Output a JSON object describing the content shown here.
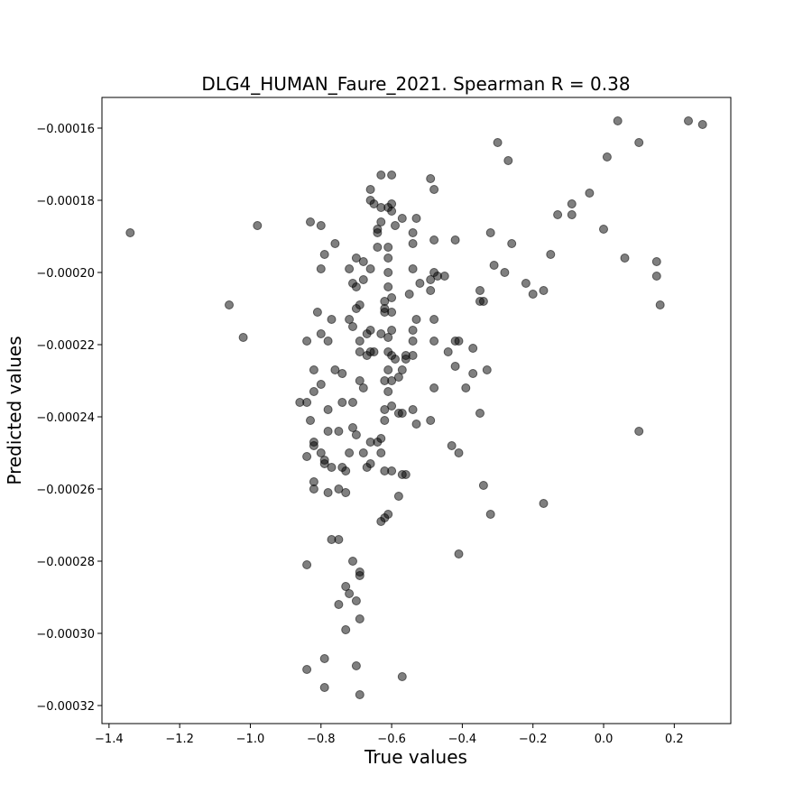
{
  "chart_data": {
    "type": "scatter",
    "title": "DLG4_HUMAN_Faure_2021. Spearman R = 0.38",
    "xlabel": "True values",
    "ylabel": "Predicted values",
    "xlim": [
      -1.42,
      0.36
    ],
    "ylim": [
      -0.000325,
      -0.0001515
    ],
    "xticks": [
      -1.4,
      -1.2,
      -1.0,
      -0.8,
      -0.6,
      -0.4,
      -0.2,
      0.0,
      0.2
    ],
    "xtick_labels": [
      "−1.4",
      "−1.2",
      "−1.0",
      "−0.8",
      "−0.6",
      "−0.4",
      "−0.2",
      "0.0",
      "0.2"
    ],
    "yticks": [
      -0.00016,
      -0.00018,
      -0.0002,
      -0.00022,
      -0.00024,
      -0.00026,
      -0.00028,
      -0.0003,
      -0.00032
    ],
    "ytick_labels": [
      "−0.00016",
      "−0.00018",
      "−0.00020",
      "−0.00022",
      "−0.00024",
      "−0.00026",
      "−0.00028",
      "−0.00030",
      "−0.00032"
    ],
    "grid": false,
    "marker_color": "#000000",
    "marker_alpha": 0.5,
    "points": [
      [
        -1.34,
        -0.000189
      ],
      [
        -1.06,
        -0.000209
      ],
      [
        -1.02,
        -0.000218
      ],
      [
        -0.98,
        -0.000187
      ],
      [
        0.24,
        -0.000158
      ],
      [
        0.28,
        -0.000159
      ],
      [
        0.04,
        -0.000158
      ],
      [
        0.1,
        -0.000164
      ],
      [
        0.01,
        -0.000168
      ],
      [
        -0.3,
        -0.000164
      ],
      [
        -0.27,
        -0.000169
      ],
      [
        -0.04,
        -0.000178
      ],
      [
        -0.09,
        -0.000181
      ],
      [
        -0.13,
        -0.000184
      ],
      [
        -0.09,
        -0.000184
      ],
      [
        -0.0,
        -0.000188
      ],
      [
        -0.15,
        -0.000195
      ],
      [
        -0.26,
        -0.000192
      ],
      [
        -0.32,
        -0.000189
      ],
      [
        -0.31,
        -0.000198
      ],
      [
        -0.28,
        -0.0002
      ],
      [
        -0.22,
        -0.000203
      ],
      [
        -0.2,
        -0.000206
      ],
      [
        -0.17,
        -0.000205
      ],
      [
        0.06,
        -0.000196
      ],
      [
        0.15,
        -0.000197
      ],
      [
        0.15,
        -0.000201
      ],
      [
        0.16,
        -0.000209
      ],
      [
        0.1,
        -0.000244
      ],
      [
        -0.17,
        -0.000264
      ],
      [
        -0.32,
        -0.000267
      ],
      [
        -0.34,
        -0.000259
      ],
      [
        -0.41,
        -0.000278
      ],
      [
        -0.41,
        -0.00025
      ],
      [
        -0.43,
        -0.000248
      ],
      [
        -0.35,
        -0.000239
      ],
      [
        -0.33,
        -0.000227
      ],
      [
        -0.37,
        -0.000228
      ],
      [
        -0.39,
        -0.000232
      ],
      [
        -0.42,
        -0.000226
      ],
      [
        -0.44,
        -0.000222
      ],
      [
        -0.41,
        -0.000219
      ],
      [
        -0.42,
        -0.000219
      ],
      [
        -0.37,
        -0.000221
      ],
      [
        -0.35,
        -0.000208
      ],
      [
        -0.34,
        -0.000208
      ],
      [
        -0.35,
        -0.000205
      ],
      [
        -0.42,
        -0.000191
      ],
      [
        -0.45,
        -0.000201
      ],
      [
        -0.47,
        -0.000201
      ],
      [
        -0.48,
        -0.0002
      ],
      [
        -0.49,
        -0.000202
      ],
      [
        -0.49,
        -0.000205
      ],
      [
        -0.48,
        -0.000191
      ],
      [
        -0.48,
        -0.000177
      ],
      [
        -0.49,
        -0.000174
      ],
      [
        -0.52,
        -0.000203
      ],
      [
        -0.54,
        -0.000199
      ],
      [
        -0.53,
        -0.000185
      ],
      [
        -0.54,
        -0.000189
      ],
      [
        -0.54,
        -0.000192
      ],
      [
        -0.57,
        -0.000185
      ],
      [
        -0.59,
        -0.000187
      ],
      [
        -0.55,
        -0.000206
      ],
      [
        -0.54,
        -0.000216
      ],
      [
        -0.54,
        -0.000219
      ],
      [
        -0.54,
        -0.000223
      ],
      [
        -0.56,
        -0.000223
      ],
      [
        -0.56,
        -0.000224
      ],
      [
        -0.57,
        -0.000227
      ],
      [
        -0.58,
        -0.000229
      ],
      [
        -0.59,
        -0.000224
      ],
      [
        -0.6,
        -0.000223
      ],
      [
        -0.61,
        -0.000222
      ],
      [
        -0.61,
        -0.000227
      ],
      [
        -0.6,
        -0.00023
      ],
      [
        -0.62,
        -0.00023
      ],
      [
        -0.61,
        -0.000233
      ],
      [
        -0.6,
        -0.000237
      ],
      [
        -0.62,
        -0.000238
      ],
      [
        -0.62,
        -0.000241
      ],
      [
        -0.63,
        -0.000246
      ],
      [
        -0.64,
        -0.000247
      ],
      [
        -0.63,
        -0.00025
      ],
      [
        -0.62,
        -0.000255
      ],
      [
        -0.6,
        -0.000255
      ],
      [
        -0.57,
        -0.000256
      ],
      [
        -0.56,
        -0.000256
      ],
      [
        -0.58,
        -0.000262
      ],
      [
        -0.58,
        -0.000239
      ],
      [
        -0.57,
        -0.000239
      ],
      [
        -0.54,
        -0.000238
      ],
      [
        -0.53,
        -0.000242
      ],
      [
        -0.49,
        -0.000241
      ],
      [
        -0.48,
        -0.000232
      ],
      [
        -0.48,
        -0.000213
      ],
      [
        -0.48,
        -0.000219
      ],
      [
        -0.53,
        -0.000213
      ],
      [
        -0.6,
        -0.000211
      ],
      [
        -0.6,
        -0.000207
      ],
      [
        -0.62,
        -0.000208
      ],
      [
        -0.62,
        -0.000211
      ],
      [
        -0.63,
        -0.000217
      ],
      [
        -0.6,
        -0.000216
      ],
      [
        -0.61,
        -0.000218
      ],
      [
        -0.62,
        -0.00021
      ],
      [
        -0.61,
        -0.000204
      ],
      [
        -0.61,
        -0.0002
      ],
      [
        -0.61,
        -0.000196
      ],
      [
        -0.61,
        -0.000193
      ],
      [
        -0.63,
        -0.000186
      ],
      [
        -0.64,
        -0.000188
      ],
      [
        -0.64,
        -0.000189
      ],
      [
        -0.64,
        -0.000193
      ],
      [
        -0.61,
        -0.000182
      ],
      [
        -0.6,
        -0.000183
      ],
      [
        -0.63,
        -0.000182
      ],
      [
        -0.65,
        -0.000181
      ],
      [
        -0.66,
        -0.00018
      ],
      [
        -0.66,
        -0.000177
      ],
      [
        -0.63,
        -0.000173
      ],
      [
        -0.6,
        -0.000173
      ],
      [
        -0.6,
        -0.000181
      ],
      [
        -0.66,
        -0.000199
      ],
      [
        -0.68,
        -0.000197
      ],
      [
        -0.7,
        -0.000196
      ],
      [
        -0.68,
        -0.000202
      ],
      [
        -0.7,
        -0.000204
      ],
      [
        -0.72,
        -0.000199
      ],
      [
        -0.71,
        -0.000203
      ],
      [
        -0.69,
        -0.000209
      ],
      [
        -0.7,
        -0.00021
      ],
      [
        -0.66,
        -0.000216
      ],
      [
        -0.67,
        -0.000217
      ],
      [
        -0.65,
        -0.000222
      ],
      [
        -0.66,
        -0.000222
      ],
      [
        -0.67,
        -0.000223
      ],
      [
        -0.69,
        -0.000222
      ],
      [
        -0.69,
        -0.000219
      ],
      [
        -0.71,
        -0.000215
      ],
      [
        -0.72,
        -0.000213
      ],
      [
        -0.77,
        -0.000213
      ],
      [
        -0.81,
        -0.000211
      ],
      [
        -0.8,
        -0.000217
      ],
      [
        -0.78,
        -0.000219
      ],
      [
        -0.84,
        -0.000219
      ],
      [
        -0.76,
        -0.000227
      ],
      [
        -0.82,
        -0.000227
      ],
      [
        -0.74,
        -0.000228
      ],
      [
        -0.8,
        -0.000231
      ],
      [
        -0.82,
        -0.000233
      ],
      [
        -0.69,
        -0.00023
      ],
      [
        -0.68,
        -0.000232
      ],
      [
        -0.71,
        -0.000236
      ],
      [
        -0.74,
        -0.000236
      ],
      [
        -0.78,
        -0.000238
      ],
      [
        -0.84,
        -0.000236
      ],
      [
        -0.86,
        -0.000236
      ],
      [
        -0.83,
        -0.000241
      ],
      [
        -0.78,
        -0.000244
      ],
      [
        -0.75,
        -0.000244
      ],
      [
        -0.71,
        -0.000243
      ],
      [
        -0.7,
        -0.000245
      ],
      [
        -0.66,
        -0.000247
      ],
      [
        -0.68,
        -0.00025
      ],
      [
        -0.72,
        -0.00025
      ],
      [
        -0.79,
        -0.000252
      ],
      [
        -0.8,
        -0.00025
      ],
      [
        -0.82,
        -0.000247
      ],
      [
        -0.82,
        -0.000248
      ],
      [
        -0.84,
        -0.000251
      ],
      [
        -0.79,
        -0.000253
      ],
      [
        -0.77,
        -0.000254
      ],
      [
        -0.74,
        -0.000254
      ],
      [
        -0.73,
        -0.000255
      ],
      [
        -0.67,
        -0.000254
      ],
      [
        -0.66,
        -0.000253
      ],
      [
        -0.82,
        -0.000258
      ],
      [
        -0.82,
        -0.00026
      ],
      [
        -0.78,
        -0.000261
      ],
      [
        -0.75,
        -0.00026
      ],
      [
        -0.73,
        -0.000261
      ],
      [
        -0.63,
        -0.000269
      ],
      [
        -0.62,
        -0.000268
      ],
      [
        -0.61,
        -0.000267
      ],
      [
        -0.77,
        -0.000274
      ],
      [
        -0.75,
        -0.000274
      ],
      [
        -0.84,
        -0.000281
      ],
      [
        -0.71,
        -0.00028
      ],
      [
        -0.69,
        -0.000283
      ],
      [
        -0.69,
        -0.000284
      ],
      [
        -0.73,
        -0.000287
      ],
      [
        -0.72,
        -0.000289
      ],
      [
        -0.7,
        -0.000291
      ],
      [
        -0.75,
        -0.000292
      ],
      [
        -0.69,
        -0.000296
      ],
      [
        -0.73,
        -0.000299
      ],
      [
        -0.79,
        -0.000307
      ],
      [
        -0.84,
        -0.00031
      ],
      [
        -0.7,
        -0.000309
      ],
      [
        -0.57,
        -0.000312
      ],
      [
        -0.79,
        -0.000315
      ],
      [
        -0.69,
        -0.000317
      ],
      [
        -0.76,
        -0.000192
      ],
      [
        -0.79,
        -0.000195
      ],
      [
        -0.8,
        -0.000187
      ],
      [
        -0.83,
        -0.000186
      ],
      [
        -0.8,
        -0.000199
      ]
    ]
  }
}
